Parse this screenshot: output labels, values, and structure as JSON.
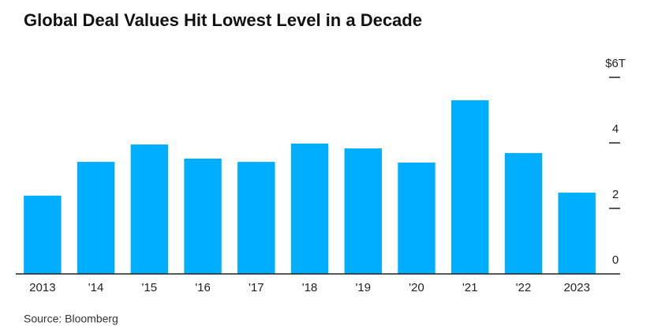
{
  "chart_data": {
    "type": "bar",
    "title": "Global Deal Values Hit Lowest Level in a Decade",
    "categories": [
      "2013",
      "'14",
      "'15",
      "'16",
      "'17",
      "'18",
      "'19",
      "'20",
      "'21",
      "'22",
      "2023"
    ],
    "values": [
      2.39,
      3.42,
      3.95,
      3.52,
      3.42,
      3.98,
      3.83,
      3.4,
      5.3,
      3.69,
      2.48
    ],
    "color": "#00aeff",
    "ylim": [
      0,
      6
    ],
    "yticks": [
      0,
      2,
      4,
      {
        "value": 6,
        "label": "$6T"
      }
    ],
    "source": "Source: Bloomberg"
  }
}
